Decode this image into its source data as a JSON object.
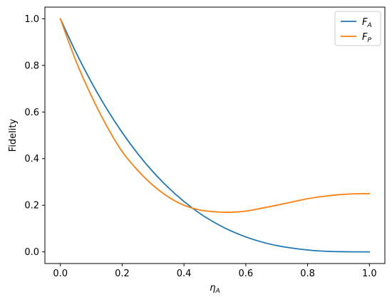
{
  "chart_data": {
    "type": "line",
    "xlabel": "η",
    "xlabel_sub": "A",
    "ylabel": "Fidelity",
    "xlim": [
      -0.05,
      1.05
    ],
    "ylim": [
      -0.05,
      1.05
    ],
    "x_ticks": [
      0.0,
      0.2,
      0.4,
      0.6,
      0.8,
      1.0
    ],
    "x_tick_labels": [
      "0.0",
      "0.2",
      "0.4",
      "0.6",
      "0.8",
      "1.0"
    ],
    "y_ticks": [
      0.0,
      0.2,
      0.4,
      0.6,
      0.8,
      1.0
    ],
    "y_tick_labels": [
      "0.0",
      "0.2",
      "0.4",
      "0.6",
      "0.8",
      "1.0"
    ],
    "grid": false,
    "legend_position": "top-right",
    "series": [
      {
        "name": "F",
        "name_sub": "A",
        "color": "#1f77b4",
        "x": [
          0.0,
          0.05,
          0.1,
          0.15,
          0.2,
          0.25,
          0.3,
          0.35,
          0.4,
          0.45,
          0.5,
          0.55,
          0.6,
          0.65,
          0.7,
          0.75,
          0.8,
          0.85,
          0.9,
          0.95,
          1.0
        ],
        "y": [
          1.0,
          0.857,
          0.729,
          0.614,
          0.512,
          0.422,
          0.343,
          0.275,
          0.216,
          0.166,
          0.125,
          0.091,
          0.064,
          0.043,
          0.027,
          0.016,
          0.008,
          0.003,
          0.001,
          0.0,
          0.0
        ]
      },
      {
        "name": "F",
        "name_sub": "P",
        "color": "#ff7f0e",
        "x": [
          0.0,
          0.05,
          0.1,
          0.15,
          0.2,
          0.25,
          0.3,
          0.35,
          0.4,
          0.45,
          0.5,
          0.55,
          0.6,
          0.65,
          0.7,
          0.75,
          0.8,
          0.85,
          0.9,
          0.95,
          1.0
        ],
        "y": [
          1.0,
          0.82,
          0.67,
          0.54,
          0.43,
          0.35,
          0.285,
          0.235,
          0.2,
          0.18,
          0.172,
          0.17,
          0.175,
          0.187,
          0.2,
          0.214,
          0.228,
          0.238,
          0.245,
          0.249,
          0.25
        ]
      }
    ]
  }
}
